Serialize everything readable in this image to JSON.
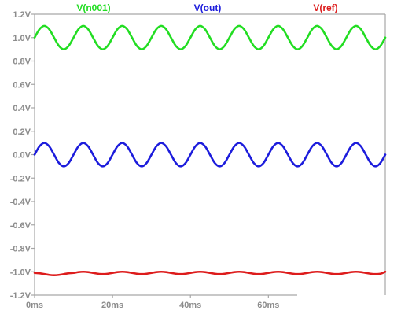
{
  "chart_data": {
    "type": "line",
    "title": "",
    "xlabel": "",
    "ylabel": "",
    "xlim": [
      0,
      90
    ],
    "ylim": [
      -1.2,
      1.2
    ],
    "x_ticks": [
      {
        "value": 0,
        "label": "0ms"
      },
      {
        "value": 20,
        "label": "20ms"
      },
      {
        "value": 40,
        "label": "40ms"
      },
      {
        "value": 60,
        "label": "60ms"
      }
    ],
    "y_ticks": [
      {
        "value": 1.2,
        "label": "1.2V"
      },
      {
        "value": 1.0,
        "label": "1.0V"
      },
      {
        "value": 0.8,
        "label": "0.8V"
      },
      {
        "value": 0.6,
        "label": "0.6V"
      },
      {
        "value": 0.4,
        "label": "0.4V"
      },
      {
        "value": 0.2,
        "label": "0.2V"
      },
      {
        "value": 0.0,
        "label": "0.0V"
      },
      {
        "value": -0.2,
        "label": "-0.2V"
      },
      {
        "value": -0.4,
        "label": "-0.4V"
      },
      {
        "value": -0.6,
        "label": "-0.6V"
      },
      {
        "value": -0.8,
        "label": "-0.8V"
      },
      {
        "value": -1.0,
        "label": "-1.0V"
      },
      {
        "value": -1.2,
        "label": "-1.2V"
      }
    ],
    "grid": false,
    "legend_placement": "top",
    "series": [
      {
        "name": "V(n001)",
        "color": "#22dd22",
        "x": [
          0,
          1.25,
          2.5,
          3.75,
          5,
          6.25,
          7.5,
          8.75,
          10,
          11.25,
          12.5,
          13.75,
          15,
          16.25,
          17.5,
          18.75,
          20,
          21.25,
          22.5,
          23.75,
          25,
          26.25,
          27.5,
          28.75,
          30,
          31.25,
          32.5,
          33.75,
          35,
          36.25,
          37.5,
          38.75,
          40,
          41.25,
          42.5,
          43.75,
          45,
          46.25,
          47.5,
          48.75,
          50,
          51.25,
          52.5,
          53.75,
          55,
          56.25,
          57.5,
          58.75,
          60,
          61.25,
          62.5,
          63.75,
          65,
          66.25,
          67.5,
          68.75,
          70,
          71.25,
          72.5,
          73.75,
          75,
          76.25,
          77.5,
          78.75,
          80,
          81.25,
          82.5,
          83.75,
          85,
          86.25,
          87.5,
          88.75,
          90
        ],
        "y": [
          1.0,
          1.071,
          1.1,
          1.071,
          1.0,
          0.929,
          0.9,
          0.929,
          1.0,
          1.071,
          1.1,
          1.071,
          1.0,
          0.929,
          0.9,
          0.929,
          1.0,
          1.071,
          1.1,
          1.071,
          1.0,
          0.929,
          0.9,
          0.929,
          1.0,
          1.071,
          1.1,
          1.071,
          1.0,
          0.929,
          0.9,
          0.929,
          1.0,
          1.071,
          1.1,
          1.071,
          1.0,
          0.929,
          0.9,
          0.929,
          1.0,
          1.071,
          1.1,
          1.071,
          1.0,
          0.929,
          0.9,
          0.929,
          1.0,
          1.071,
          1.1,
          1.071,
          1.0,
          0.929,
          0.9,
          0.929,
          1.0,
          1.071,
          1.1,
          1.071,
          1.0,
          0.929,
          0.9,
          0.929,
          1.0,
          1.071,
          1.1,
          1.071,
          1.0,
          0.929,
          0.9,
          0.929,
          1.0
        ]
      },
      {
        "name": "V(out)",
        "color": "#1c1cdc",
        "x": [
          0,
          1.25,
          2.5,
          3.75,
          5,
          6.25,
          7.5,
          8.75,
          10,
          11.25,
          12.5,
          13.75,
          15,
          16.25,
          17.5,
          18.75,
          20,
          21.25,
          22.5,
          23.75,
          25,
          26.25,
          27.5,
          28.75,
          30,
          31.25,
          32.5,
          33.75,
          35,
          36.25,
          37.5,
          38.75,
          40,
          41.25,
          42.5,
          43.75,
          45,
          46.25,
          47.5,
          48.75,
          50,
          51.25,
          52.5,
          53.75,
          55,
          56.25,
          57.5,
          58.75,
          60,
          61.25,
          62.5,
          63.75,
          65,
          66.25,
          67.5,
          68.75,
          70,
          71.25,
          72.5,
          73.75,
          75,
          76.25,
          77.5,
          78.75,
          80,
          81.25,
          82.5,
          83.75,
          85,
          86.25,
          87.5,
          88.75,
          90
        ],
        "y": [
          0.0,
          0.071,
          0.1,
          0.071,
          0.0,
          -0.071,
          -0.1,
          -0.071,
          0.0,
          0.071,
          0.1,
          0.071,
          0.0,
          -0.071,
          -0.1,
          -0.071,
          0.0,
          0.071,
          0.1,
          0.071,
          0.0,
          -0.071,
          -0.1,
          -0.071,
          0.0,
          0.071,
          0.1,
          0.071,
          0.0,
          -0.071,
          -0.1,
          -0.071,
          0.0,
          0.071,
          0.1,
          0.071,
          0.0,
          -0.071,
          -0.1,
          -0.071,
          0.0,
          0.071,
          0.1,
          0.071,
          0.0,
          -0.071,
          -0.1,
          -0.071,
          0.0,
          0.071,
          0.1,
          0.071,
          0.0,
          -0.071,
          -0.1,
          -0.071,
          0.0,
          0.071,
          0.1,
          0.071,
          0.0,
          -0.071,
          -0.1,
          -0.071,
          0.0,
          0.071,
          0.1,
          0.071,
          0.0,
          -0.071,
          -0.1,
          -0.071,
          0.0
        ]
      },
      {
        "name": "V(ref)",
        "color": "#dd1c1c",
        "x": [
          0,
          1.25,
          2.5,
          3.75,
          5,
          6.25,
          7.5,
          8.75,
          10,
          11.25,
          12.5,
          13.75,
          15,
          16.25,
          17.5,
          18.75,
          20,
          21.25,
          22.5,
          23.75,
          25,
          26.25,
          27.5,
          28.75,
          30,
          31.25,
          32.5,
          33.75,
          35,
          36.25,
          37.5,
          38.75,
          40,
          41.25,
          42.5,
          43.75,
          45,
          46.25,
          47.5,
          48.75,
          50,
          51.25,
          52.5,
          53.75,
          55,
          56.25,
          57.5,
          58.75,
          60,
          61.25,
          62.5,
          63.75,
          65,
          66.25,
          67.5,
          68.75,
          70,
          71.25,
          72.5,
          73.75,
          75,
          76.25,
          77.5,
          78.75,
          80,
          81.25,
          82.5,
          83.75,
          85,
          86.25,
          87.5,
          88.75,
          90
        ],
        "y": [
          -1.01,
          -1.013,
          -1.02,
          -1.027,
          -1.03,
          -1.027,
          -1.02,
          -1.013,
          -1.01,
          -1.003,
          -1.0,
          -1.003,
          -1.01,
          -1.017,
          -1.02,
          -1.017,
          -1.01,
          -1.003,
          -1.0,
          -1.003,
          -1.01,
          -1.017,
          -1.02,
          -1.017,
          -1.01,
          -1.003,
          -1.0,
          -1.003,
          -1.01,
          -1.017,
          -1.02,
          -1.017,
          -1.01,
          -1.003,
          -1.0,
          -1.003,
          -1.01,
          -1.017,
          -1.02,
          -1.017,
          -1.01,
          -1.003,
          -1.0,
          -1.003,
          -1.01,
          -1.017,
          -1.02,
          -1.017,
          -1.01,
          -1.003,
          -1.0,
          -1.003,
          -1.01,
          -1.017,
          -1.02,
          -1.017,
          -1.01,
          -1.003,
          -1.0,
          -1.003,
          -1.01,
          -1.017,
          -1.02,
          -1.017,
          -1.01,
          -1.003,
          -1.0,
          -1.003,
          -1.01,
          -1.017,
          -1.02,
          -1.017,
          -1.0
        ]
      }
    ]
  }
}
